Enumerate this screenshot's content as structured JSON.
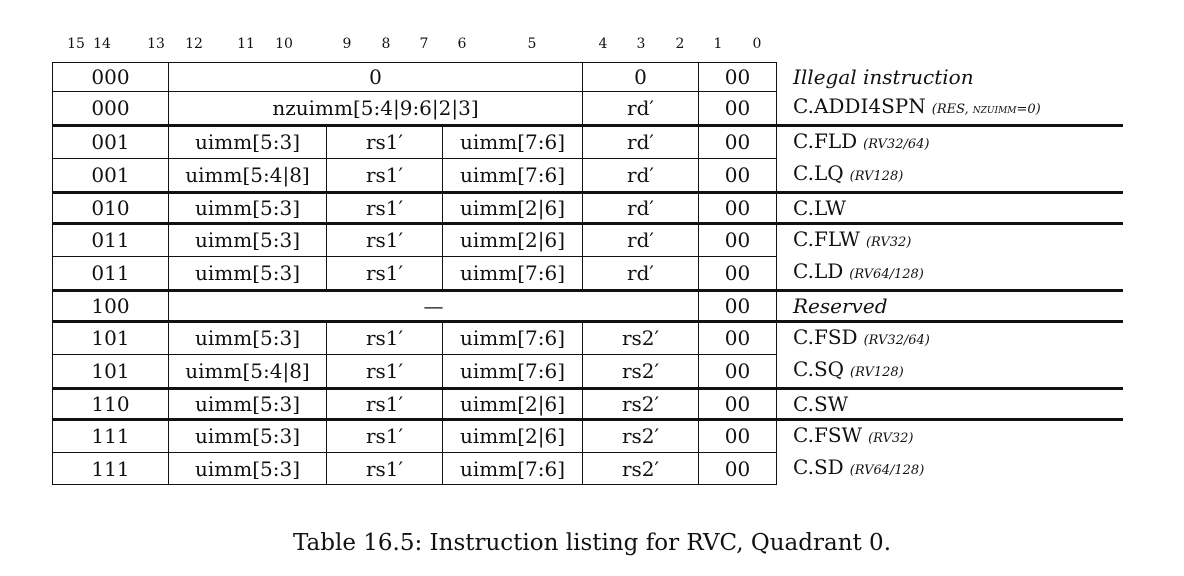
{
  "bit_labels": [
    "15",
    "14",
    "13",
    "12",
    "11",
    "10",
    "9",
    "8",
    "7",
    "6",
    "5",
    "4",
    "3",
    "2",
    "1",
    "0"
  ],
  "rows": [
    {
      "f": "000",
      "a": "0",
      "b": "",
      "c": "",
      "rd": "0",
      "op": "00",
      "m": "Illegal instruction",
      "n": ""
    },
    {
      "f": "000",
      "a": "nzuimm[5:4|9:6|2|3]",
      "b": "",
      "c": "",
      "rd": "rd′",
      "op": "00",
      "m": "C.ADDI4SPN",
      "n": "(RES, nzuimm=0)"
    },
    {
      "f": "001",
      "a": "uimm[5:3]",
      "b": "rs1′",
      "c": "uimm[7:6]",
      "rd": "rd′",
      "op": "00",
      "m": "C.FLD",
      "n": "(RV32/64)"
    },
    {
      "f": "001",
      "a": "uimm[5:4|8]",
      "b": "rs1′",
      "c": "uimm[7:6]",
      "rd": "rd′",
      "op": "00",
      "m": "C.LQ",
      "n": "(RV128)"
    },
    {
      "f": "010",
      "a": "uimm[5:3]",
      "b": "rs1′",
      "c": "uimm[2|6]",
      "rd": "rd′",
      "op": "00",
      "m": "C.LW",
      "n": ""
    },
    {
      "f": "011",
      "a": "uimm[5:3]",
      "b": "rs1′",
      "c": "uimm[2|6]",
      "rd": "rd′",
      "op": "00",
      "m": "C.FLW",
      "n": "(RV32)"
    },
    {
      "f": "011",
      "a": "uimm[5:3]",
      "b": "rs1′",
      "c": "uimm[7:6]",
      "rd": "rd′",
      "op": "00",
      "m": "C.LD",
      "n": "(RV64/128)"
    },
    {
      "f": "100",
      "a": "—",
      "b": "",
      "c": "",
      "rd": "",
      "op": "00",
      "m": "Reserved",
      "n": ""
    },
    {
      "f": "101",
      "a": "uimm[5:3]",
      "b": "rs1′",
      "c": "uimm[7:6]",
      "rd": "rs2′",
      "op": "00",
      "m": "C.FSD",
      "n": "(RV32/64)"
    },
    {
      "f": "101",
      "a": "uimm[5:4|8]",
      "b": "rs1′",
      "c": "uimm[7:6]",
      "rd": "rs2′",
      "op": "00",
      "m": "C.SQ",
      "n": "(RV128)"
    },
    {
      "f": "110",
      "a": "uimm[5:3]",
      "b": "rs1′",
      "c": "uimm[2|6]",
      "rd": "rs2′",
      "op": "00",
      "m": "C.SW",
      "n": ""
    },
    {
      "f": "111",
      "a": "uimm[5:3]",
      "b": "rs1′",
      "c": "uimm[2|6]",
      "rd": "rs2′",
      "op": "00",
      "m": "C.FSW",
      "n": "(RV32)"
    },
    {
      "f": "111",
      "a": "uimm[5:3]",
      "b": "rs1′",
      "c": "uimm[7:6]",
      "rd": "rs2′",
      "op": "00",
      "m": "C.SD",
      "n": "(RV64/128)"
    }
  ],
  "caption": "Table 16.5: Instruction listing for RVC, Quadrant 0."
}
